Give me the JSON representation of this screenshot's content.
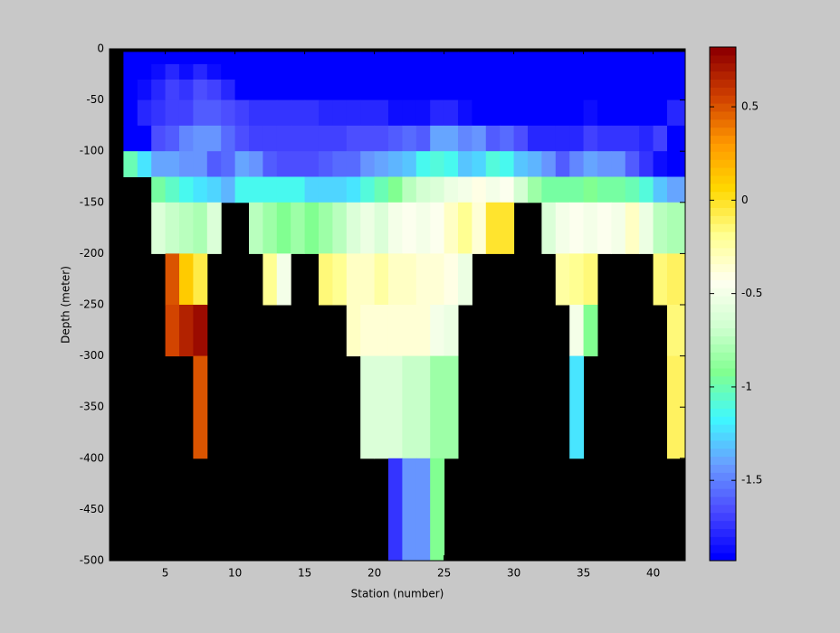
{
  "chart_data": {
    "type": "heatmap",
    "xlabel": "Station (number)",
    "ylabel": "Depth (meter)",
    "x": [
      1,
      2,
      3,
      4,
      5,
      6,
      7,
      8,
      9,
      10,
      11,
      12,
      13,
      14,
      15,
      16,
      17,
      18,
      19,
      20,
      21,
      22,
      23,
      24,
      25,
      26,
      27,
      28,
      29,
      30,
      31,
      32,
      33,
      34,
      35,
      36,
      37,
      38,
      39,
      40,
      41
    ],
    "y": [
      -3,
      -15,
      -30,
      -50,
      -75,
      -100,
      -125,
      -150,
      -200,
      -250,
      -300,
      -400
    ],
    "values": [
      [
        null,
        -1.9,
        -1.9,
        -1.9,
        -1.9,
        -1.9,
        -1.9,
        -1.9,
        -1.9,
        -1.9,
        -1.9,
        -1.9,
        -1.9,
        -1.9,
        -1.9,
        -1.9,
        -1.9,
        -1.9,
        -1.9,
        -1.9,
        -1.9,
        -1.9,
        -1.9,
        -1.9,
        -1.9,
        -1.9,
        -1.9,
        -1.9,
        -1.9,
        -1.9,
        -1.9,
        -1.9,
        -1.9,
        -1.9,
        -1.9,
        -1.9,
        -1.9,
        -1.9,
        -1.9,
        -1.9,
        -1.9
      ],
      [
        null,
        -1.9,
        -1.9,
        -1.85,
        -1.8,
        -1.85,
        -1.8,
        -1.85,
        -1.9,
        -1.9,
        -1.9,
        -1.9,
        -1.9,
        -1.9,
        -1.9,
        -1.9,
        -1.9,
        -1.9,
        -1.9,
        -1.9,
        -1.9,
        -1.9,
        -1.9,
        -1.9,
        -1.9,
        -1.9,
        -1.9,
        -1.9,
        -1.9,
        -1.9,
        -1.9,
        -1.9,
        -1.9,
        -1.9,
        -1.9,
        -1.9,
        -1.9,
        -1.9,
        -1.9,
        -1.9,
        -1.9
      ],
      [
        null,
        -1.9,
        -1.85,
        -1.8,
        -1.7,
        -1.75,
        -1.65,
        -1.7,
        -1.8,
        -1.9,
        -1.9,
        -1.9,
        -1.9,
        -1.9,
        -1.9,
        -1.9,
        -1.9,
        -1.9,
        -1.9,
        -1.9,
        -1.9,
        -1.9,
        -1.9,
        -1.9,
        -1.9,
        -1.9,
        -1.9,
        -1.9,
        -1.9,
        -1.9,
        -1.9,
        -1.9,
        -1.9,
        -1.9,
        -1.9,
        -1.9,
        -1.9,
        -1.9,
        -1.9,
        -1.9,
        -1.9
      ],
      [
        null,
        -1.9,
        -1.8,
        -1.75,
        -1.7,
        -1.7,
        -1.6,
        -1.6,
        -1.65,
        -1.7,
        -1.75,
        -1.75,
        -1.75,
        -1.75,
        -1.75,
        -1.8,
        -1.8,
        -1.8,
        -1.8,
        -1.8,
        -1.85,
        -1.85,
        -1.85,
        -1.8,
        -1.8,
        -1.85,
        -1.9,
        -1.9,
        -1.9,
        -1.9,
        -1.9,
        -1.9,
        -1.9,
        -1.9,
        -1.85,
        -1.9,
        -1.9,
        -1.9,
        -1.9,
        -1.9,
        -1.8
      ],
      [
        null,
        -1.9,
        -1.9,
        -1.65,
        -1.6,
        -1.5,
        -1.45,
        -1.45,
        -1.55,
        -1.65,
        -1.7,
        -1.7,
        -1.7,
        -1.7,
        -1.7,
        -1.7,
        -1.7,
        -1.65,
        -1.65,
        -1.65,
        -1.6,
        -1.55,
        -1.6,
        -1.4,
        -1.4,
        -1.5,
        -1.45,
        -1.6,
        -1.55,
        -1.65,
        -1.8,
        -1.8,
        -1.8,
        -1.8,
        -1.7,
        -1.75,
        -1.75,
        -1.75,
        -1.8,
        -1.7,
        -1.9
      ],
      [
        null,
        -1.0,
        -1.2,
        -1.4,
        -1.4,
        -1.45,
        -1.45,
        -1.6,
        -1.55,
        -1.4,
        -1.45,
        -1.6,
        -1.65,
        -1.65,
        -1.65,
        -1.6,
        -1.55,
        -1.55,
        -1.45,
        -1.4,
        -1.35,
        -1.3,
        -1.15,
        -1.1,
        -1.15,
        -1.3,
        -1.25,
        -1.1,
        -1.15,
        -1.3,
        -1.35,
        -1.45,
        -1.6,
        -1.5,
        -1.4,
        -1.45,
        -1.45,
        -1.6,
        -1.75,
        -1.85,
        -1.9
      ],
      [
        null,
        null,
        null,
        -0.95,
        -1.05,
        -1.15,
        -1.2,
        -1.25,
        -1.35,
        -1.15,
        -1.15,
        -1.15,
        -1.15,
        -1.15,
        -1.25,
        -1.25,
        -1.25,
        -1.2,
        -1.1,
        -1.0,
        -0.9,
        -0.75,
        -0.65,
        -0.6,
        -0.55,
        -0.5,
        -0.4,
        -0.5,
        -0.45,
        -0.65,
        -0.85,
        -0.95,
        -0.95,
        -0.95,
        -0.9,
        -0.95,
        -0.95,
        -1.0,
        -1.1,
        -1.3,
        -1.4
      ],
      [
        null,
        null,
        null,
        -0.6,
        -0.7,
        -0.75,
        -0.8,
        -0.6,
        null,
        null,
        -0.75,
        -0.85,
        -0.9,
        -0.85,
        -0.9,
        -0.85,
        -0.75,
        -0.6,
        -0.55,
        -0.6,
        -0.5,
        -0.45,
        -0.5,
        -0.45,
        -0.3,
        -0.2,
        -0.35,
        0.0,
        0.0,
        null,
        null,
        -0.6,
        -0.5,
        -0.45,
        -0.5,
        -0.45,
        -0.5,
        -0.3,
        -0.55,
        -0.75,
        -0.8
      ],
      [
        null,
        null,
        null,
        null,
        0.5,
        0.1,
        -0.05,
        null,
        null,
        null,
        null,
        -0.2,
        -0.5,
        null,
        null,
        -0.15,
        -0.2,
        -0.3,
        -0.3,
        -0.25,
        -0.3,
        -0.3,
        -0.35,
        -0.35,
        -0.4,
        -0.55,
        null,
        null,
        null,
        null,
        null,
        null,
        -0.25,
        -0.2,
        -0.15,
        null,
        null,
        null,
        null,
        -0.15,
        -0.1
      ],
      [
        null,
        null,
        null,
        null,
        0.55,
        0.65,
        0.75,
        null,
        null,
        null,
        null,
        null,
        null,
        null,
        null,
        null,
        null,
        -0.3,
        -0.35,
        -0.35,
        -0.35,
        -0.35,
        -0.35,
        -0.5,
        -0.55,
        null,
        null,
        null,
        null,
        null,
        null,
        null,
        null,
        -0.5,
        -0.9,
        null,
        null,
        null,
        null,
        null,
        -0.15
      ],
      [
        null,
        null,
        null,
        null,
        null,
        null,
        0.5,
        null,
        null,
        null,
        null,
        null,
        null,
        null,
        null,
        null,
        null,
        null,
        -0.6,
        -0.6,
        -0.6,
        -0.7,
        -0.7,
        -0.85,
        -0.85,
        null,
        null,
        null,
        null,
        null,
        null,
        null,
        null,
        -1.2,
        null,
        null,
        null,
        null,
        null,
        null,
        -0.1
      ],
      [
        null,
        null,
        null,
        null,
        null,
        null,
        null,
        null,
        null,
        null,
        null,
        null,
        null,
        null,
        null,
        null,
        null,
        null,
        null,
        null,
        -1.75,
        -1.45,
        -1.45,
        -0.9,
        null,
        null,
        null,
        null,
        null,
        null,
        null,
        null,
        null,
        null,
        null,
        null,
        null,
        null,
        null,
        null,
        null
      ]
    ],
    "xlim": [
      1,
      42.3
    ],
    "ylim": [
      -500,
      0
    ],
    "xticks": [
      5,
      10,
      15,
      20,
      25,
      30,
      35,
      40
    ],
    "yticks": [
      -500,
      -450,
      -400,
      -350,
      -300,
      -250,
      -200,
      -150,
      -100,
      -50,
      0
    ],
    "clim": [
      -1.93,
      0.82
    ],
    "cticks": [
      -1.5,
      -1,
      -0.5,
      0,
      0.5
    ],
    "colormap": [
      "#0000ff",
      "#4a4aff",
      "#6a9cff",
      "#3ff8ff",
      "#80ff90",
      "#d0ffd0",
      "#fffff0",
      "#ffff90",
      "#ffd800",
      "#ff9800",
      "#d04000",
      "#900000"
    ],
    "missing_color": "#000000"
  }
}
